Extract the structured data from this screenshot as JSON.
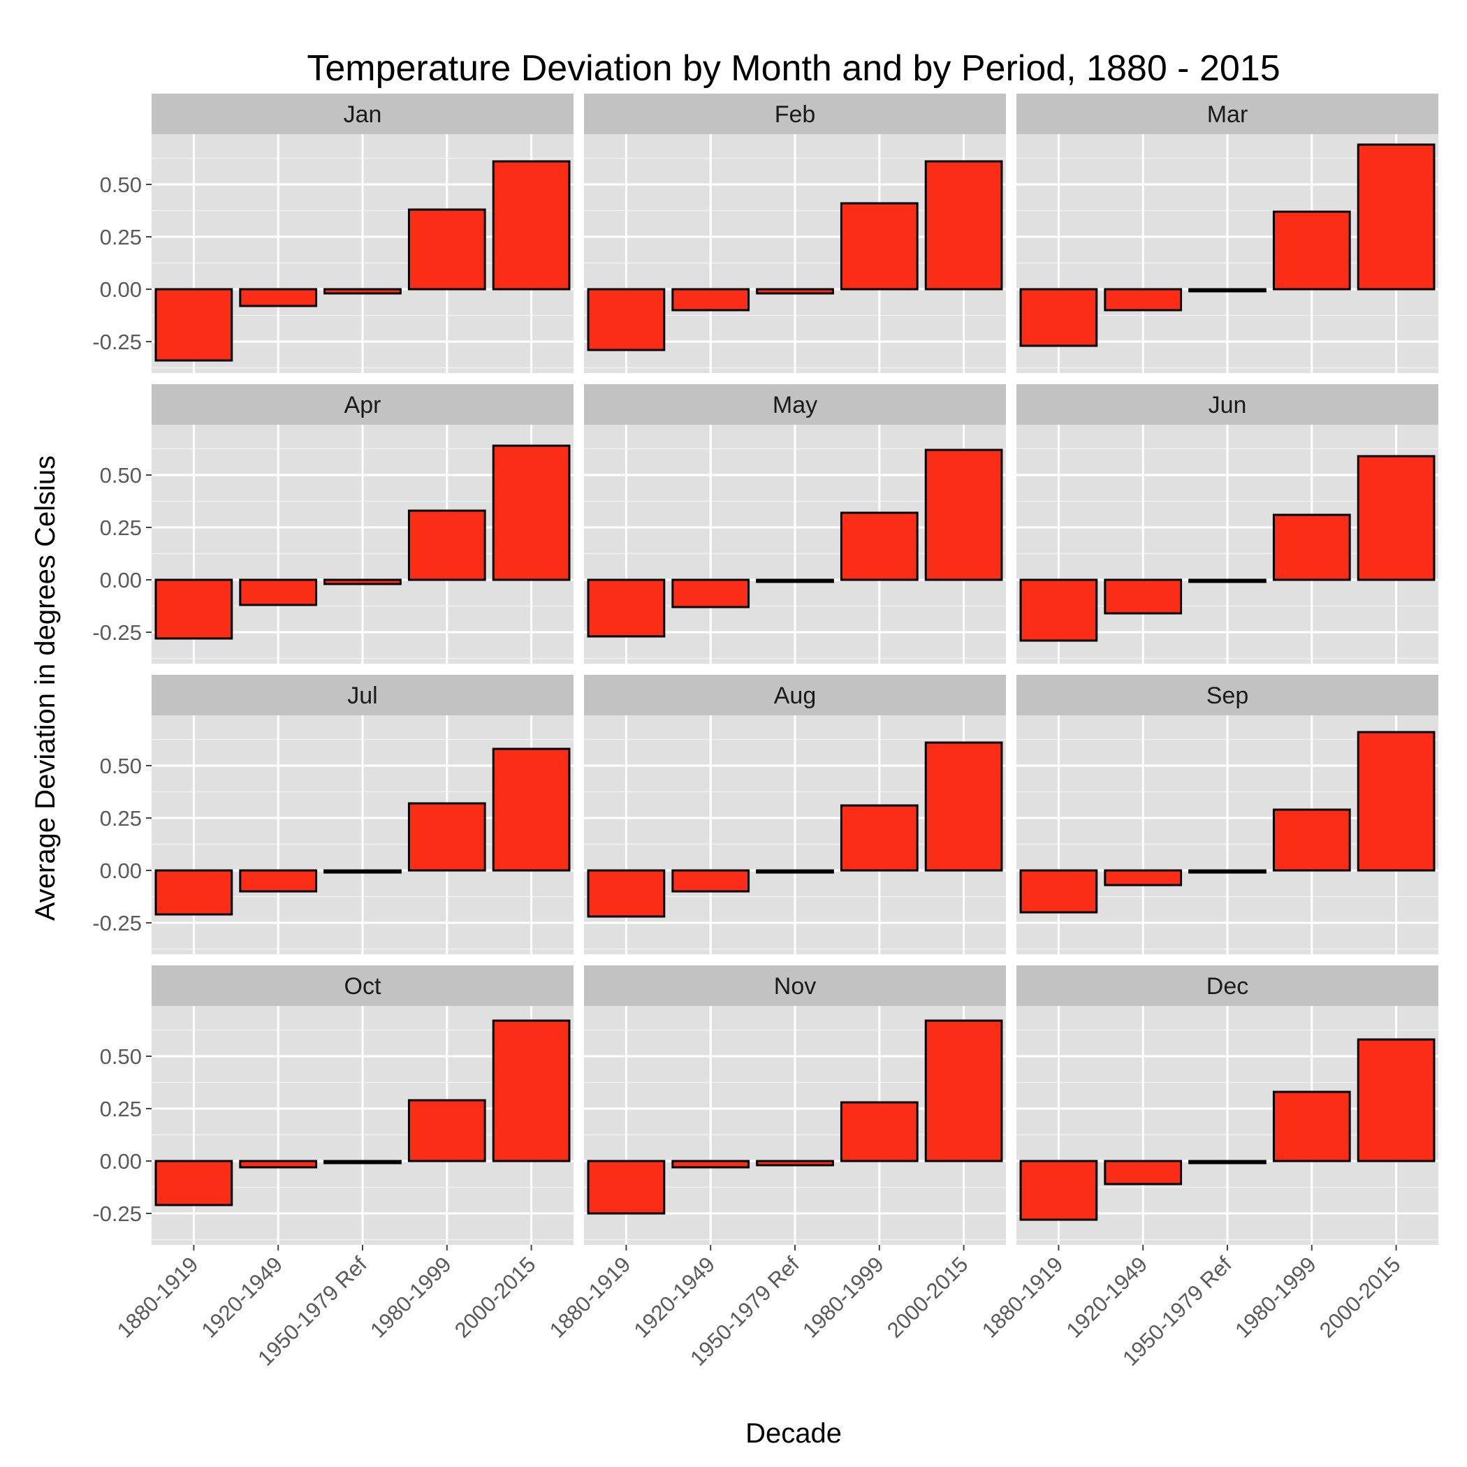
{
  "chart_data": {
    "type": "bar",
    "title": "Temperature Deviation by Month and by Period, 1880 - 2015",
    "xlabel": "Decade",
    "ylabel": "Average Deviation in degrees Celsius",
    "categories": [
      "1880-1919",
      "1920-1949",
      "1950-1979 Ref",
      "1980-1999",
      "2000-2015"
    ],
    "y_ticks": [
      -0.25,
      0,
      0.25,
      0.5
    ],
    "y_tick_labels": [
      "-0.25",
      "0.00",
      "0.25",
      "0.50"
    ],
    "ylim": [
      -0.4,
      0.74
    ],
    "grid": true,
    "facet_layout": "3 columns x 4 rows, shared axes",
    "colors": {
      "bar_fill": "#fc2d16",
      "bar_outline": "#000000",
      "panel_bg": "#e0e0e0",
      "strip_bg": "#c2c2c2",
      "grid": "#ffffff",
      "axis_text": "#5a5a5a"
    },
    "panels": [
      {
        "month": "Jan",
        "values": [
          -0.34,
          -0.08,
          -0.02,
          0.38,
          0.61
        ]
      },
      {
        "month": "Feb",
        "values": [
          -0.29,
          -0.1,
          -0.02,
          0.41,
          0.61
        ]
      },
      {
        "month": "Mar",
        "values": [
          -0.27,
          -0.1,
          -0.01,
          0.37,
          0.69
        ]
      },
      {
        "month": "Apr",
        "values": [
          -0.28,
          -0.12,
          -0.02,
          0.33,
          0.64
        ]
      },
      {
        "month": "May",
        "values": [
          -0.27,
          -0.13,
          -0.01,
          0.32,
          0.62
        ]
      },
      {
        "month": "Jun",
        "values": [
          -0.29,
          -0.16,
          -0.01,
          0.31,
          0.59
        ]
      },
      {
        "month": "Jul",
        "values": [
          -0.21,
          -0.1,
          -0.01,
          0.32,
          0.58
        ]
      },
      {
        "month": "Aug",
        "values": [
          -0.22,
          -0.1,
          -0.01,
          0.31,
          0.61
        ]
      },
      {
        "month": "Sep",
        "values": [
          -0.2,
          -0.07,
          -0.01,
          0.29,
          0.66
        ]
      },
      {
        "month": "Oct",
        "values": [
          -0.21,
          -0.03,
          -0.01,
          0.29,
          0.67
        ]
      },
      {
        "month": "Nov",
        "values": [
          -0.25,
          -0.03,
          -0.02,
          0.28,
          0.67
        ]
      },
      {
        "month": "Dec",
        "values": [
          -0.28,
          -0.11,
          -0.01,
          0.33,
          0.58
        ]
      }
    ]
  }
}
